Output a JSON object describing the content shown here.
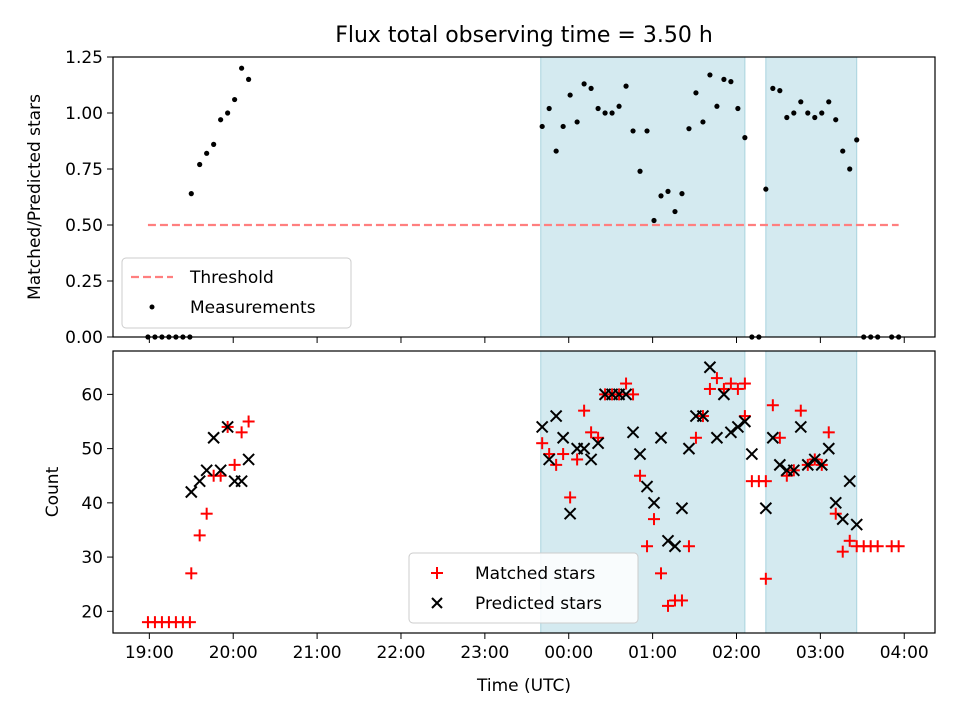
{
  "figure": {
    "title": "Flux total observing time = 3.50 h",
    "xlabel": "Time (UTC)"
  },
  "colors": {
    "band": "#d4eaf0",
    "threshold": "#ff7f7f",
    "matched": "#ff0000",
    "predicted": "#000000",
    "measurements": "#000000"
  },
  "chart_data": [
    {
      "type": "scatter",
      "ylabel": "Matched/Predicted stars",
      "xlim": [
        "18:34",
        "04:22"
      ],
      "ylim": [
        0,
        1.25
      ],
      "x_ticks": [
        "19:00",
        "20:00",
        "21:00",
        "22:00",
        "23:00",
        "00:00",
        "01:00",
        "02:00",
        "03:00",
        "04:00"
      ],
      "y_ticks": [
        "0.00",
        "0.25",
        "0.50",
        "0.75",
        "1.00",
        "1.25"
      ],
      "legend_position": "lower-left",
      "shaded_intervals": [
        [
          "23:40",
          "02:06"
        ],
        [
          "02:21",
          "03:26"
        ]
      ],
      "series": [
        {
          "name": "Threshold",
          "kind": "dashed-line",
          "points": [
            [
              "18:59",
              0.5
            ],
            [
              "03:56",
              0.5
            ]
          ]
        },
        {
          "name": "Measurements",
          "kind": "dots",
          "points": [
            [
              "18:59",
              0.0
            ],
            [
              "19:04",
              0.0
            ],
            [
              "19:09",
              0.0
            ],
            [
              "19:14",
              0.0
            ],
            [
              "19:19",
              0.0
            ],
            [
              "19:24",
              0.0
            ],
            [
              "19:29",
              0.0
            ],
            [
              "19:30",
              0.64
            ],
            [
              "19:36",
              0.77
            ],
            [
              "19:41",
              0.82
            ],
            [
              "19:46",
              0.86
            ],
            [
              "19:51",
              0.97
            ],
            [
              "19:56",
              1.0
            ],
            [
              "20:01",
              1.06
            ],
            [
              "20:06",
              1.2
            ],
            [
              "20:11",
              1.15
            ],
            [
              "23:41",
              0.94
            ],
            [
              "23:46",
              1.02
            ],
            [
              "23:51",
              0.83
            ],
            [
              "23:56",
              0.94
            ],
            [
              "00:01",
              1.08
            ],
            [
              "00:06",
              0.96
            ],
            [
              "00:11",
              1.13
            ],
            [
              "00:16",
              1.11
            ],
            [
              "00:21",
              1.02
            ],
            [
              "00:26",
              1.0
            ],
            [
              "00:31",
              1.0
            ],
            [
              "00:36",
              1.03
            ],
            [
              "00:41",
              1.12
            ],
            [
              "00:46",
              0.92
            ],
            [
              "00:51",
              0.74
            ],
            [
              "00:56",
              0.92
            ],
            [
              "01:01",
              0.52
            ],
            [
              "01:06",
              0.63
            ],
            [
              "01:11",
              0.65
            ],
            [
              "01:16",
              0.56
            ],
            [
              "01:21",
              0.64
            ],
            [
              "01:26",
              0.93
            ],
            [
              "01:31",
              1.09
            ],
            [
              "01:36",
              0.96
            ],
            [
              "01:41",
              1.17
            ],
            [
              "01:46",
              1.03
            ],
            [
              "01:51",
              1.15
            ],
            [
              "01:56",
              1.14
            ],
            [
              "02:01",
              1.02
            ],
            [
              "02:06",
              0.89
            ],
            [
              "02:11",
              0.0
            ],
            [
              "02:16",
              0.0
            ],
            [
              "02:21",
              0.66
            ],
            [
              "02:26",
              1.11
            ],
            [
              "02:31",
              1.1
            ],
            [
              "02:36",
              0.98
            ],
            [
              "02:41",
              1.0
            ],
            [
              "02:46",
              1.05
            ],
            [
              "02:51",
              1.0
            ],
            [
              "02:56",
              0.98
            ],
            [
              "03:01",
              1.0
            ],
            [
              "03:06",
              1.05
            ],
            [
              "03:11",
              0.97
            ],
            [
              "03:16",
              0.83
            ],
            [
              "03:21",
              0.75
            ],
            [
              "03:26",
              0.88
            ],
            [
              "03:31",
              0.0
            ],
            [
              "03:36",
              0.0
            ],
            [
              "03:41",
              0.0
            ],
            [
              "03:51",
              0.0
            ],
            [
              "03:56",
              0.0
            ]
          ]
        }
      ]
    },
    {
      "type": "scatter",
      "ylabel": "Count",
      "xlim": [
        "18:34",
        "04:22"
      ],
      "ylim": [
        16,
        68
      ],
      "x_ticks": [
        "19:00",
        "20:00",
        "21:00",
        "22:00",
        "23:00",
        "00:00",
        "01:00",
        "02:00",
        "03:00",
        "04:00"
      ],
      "y_ticks": [
        "20",
        "30",
        "40",
        "50",
        "60"
      ],
      "legend_position": "lower-center",
      "shaded_intervals": [
        [
          "23:40",
          "02:06"
        ],
        [
          "02:21",
          "03:26"
        ]
      ],
      "series": [
        {
          "name": "Matched stars",
          "marker": "plus",
          "points": [
            [
              "18:59",
              18
            ],
            [
              "19:04",
              18
            ],
            [
              "19:09",
              18
            ],
            [
              "19:14",
              18
            ],
            [
              "19:19",
              18
            ],
            [
              "19:24",
              18
            ],
            [
              "19:29",
              18
            ],
            [
              "19:30",
              27
            ],
            [
              "19:36",
              34
            ],
            [
              "19:41",
              38
            ],
            [
              "19:46",
              45
            ],
            [
              "19:51",
              45
            ],
            [
              "19:56",
              54
            ],
            [
              "20:01",
              47
            ],
            [
              "20:06",
              53
            ],
            [
              "20:11",
              55
            ],
            [
              "23:41",
              51
            ],
            [
              "23:46",
              49
            ],
            [
              "23:51",
              47
            ],
            [
              "23:56",
              49
            ],
            [
              "00:01",
              41
            ],
            [
              "00:06",
              48
            ],
            [
              "00:11",
              57
            ],
            [
              "00:16",
              53
            ],
            [
              "00:21",
              52
            ],
            [
              "00:26",
              60
            ],
            [
              "00:31",
              60
            ],
            [
              "00:36",
              60
            ],
            [
              "00:41",
              62
            ],
            [
              "00:46",
              60
            ],
            [
              "00:51",
              45
            ],
            [
              "00:56",
              32
            ],
            [
              "01:01",
              37
            ],
            [
              "01:06",
              27
            ],
            [
              "01:11",
              21
            ],
            [
              "01:16",
              22
            ],
            [
              "01:21",
              22
            ],
            [
              "01:26",
              32
            ],
            [
              "01:31",
              52
            ],
            [
              "01:36",
              56
            ],
            [
              "01:41",
              61
            ],
            [
              "01:46",
              63
            ],
            [
              "01:51",
              61
            ],
            [
              "01:56",
              62
            ],
            [
              "02:01",
              61
            ],
            [
              "02:06",
              62
            ],
            [
              "02:06",
              56
            ],
            [
              "02:11",
              44
            ],
            [
              "02:16",
              44
            ],
            [
              "02:21",
              44
            ],
            [
              "02:21",
              26
            ],
            [
              "02:26",
              58
            ],
            [
              "02:31",
              52
            ],
            [
              "02:36",
              45
            ],
            [
              "02:41",
              46
            ],
            [
              "02:46",
              57
            ],
            [
              "02:51",
              47
            ],
            [
              "02:56",
              48
            ],
            [
              "03:01",
              47
            ],
            [
              "03:06",
              53
            ],
            [
              "03:11",
              38
            ],
            [
              "03:16",
              31
            ],
            [
              "03:21",
              33
            ],
            [
              "03:26",
              32
            ],
            [
              "03:31",
              32
            ],
            [
              "03:36",
              32
            ],
            [
              "03:41",
              32
            ],
            [
              "03:51",
              32
            ],
            [
              "03:56",
              32
            ]
          ]
        },
        {
          "name": "Predicted stars",
          "marker": "x",
          "points": [
            [
              "19:30",
              42
            ],
            [
              "19:36",
              44
            ],
            [
              "19:41",
              46
            ],
            [
              "19:46",
              52
            ],
            [
              "19:51",
              46
            ],
            [
              "19:56",
              54
            ],
            [
              "20:01",
              44
            ],
            [
              "20:06",
              44
            ],
            [
              "20:11",
              48
            ],
            [
              "23:41",
              54
            ],
            [
              "23:46",
              48
            ],
            [
              "23:51",
              56
            ],
            [
              "23:56",
              52
            ],
            [
              "00:01",
              38
            ],
            [
              "00:06",
              50
            ],
            [
              "00:11",
              50
            ],
            [
              "00:16",
              48
            ],
            [
              "00:21",
              51
            ],
            [
              "00:26",
              60
            ],
            [
              "00:31",
              60
            ],
            [
              "00:36",
              60
            ],
            [
              "00:41",
              60
            ],
            [
              "00:46",
              53
            ],
            [
              "00:51",
              49
            ],
            [
              "00:56",
              43
            ],
            [
              "01:01",
              40
            ],
            [
              "01:06",
              52
            ],
            [
              "01:11",
              33
            ],
            [
              "01:16",
              32
            ],
            [
              "01:21",
              39
            ],
            [
              "01:26",
              50
            ],
            [
              "01:31",
              56
            ],
            [
              "01:36",
              56
            ],
            [
              "01:41",
              65
            ],
            [
              "01:46",
              52
            ],
            [
              "01:51",
              60
            ],
            [
              "01:56",
              53
            ],
            [
              "02:01",
              54
            ],
            [
              "02:06",
              55
            ],
            [
              "02:11",
              49
            ],
            [
              "02:21",
              39
            ],
            [
              "02:26",
              52
            ],
            [
              "02:31",
              47
            ],
            [
              "02:36",
              46
            ],
            [
              "02:41",
              46
            ],
            [
              "02:46",
              54
            ],
            [
              "02:51",
              47
            ],
            [
              "02:56",
              48
            ],
            [
              "03:01",
              47
            ],
            [
              "03:06",
              50
            ],
            [
              "03:11",
              40
            ],
            [
              "03:16",
              37
            ],
            [
              "03:21",
              44
            ],
            [
              "03:26",
              36
            ]
          ]
        }
      ]
    }
  ]
}
